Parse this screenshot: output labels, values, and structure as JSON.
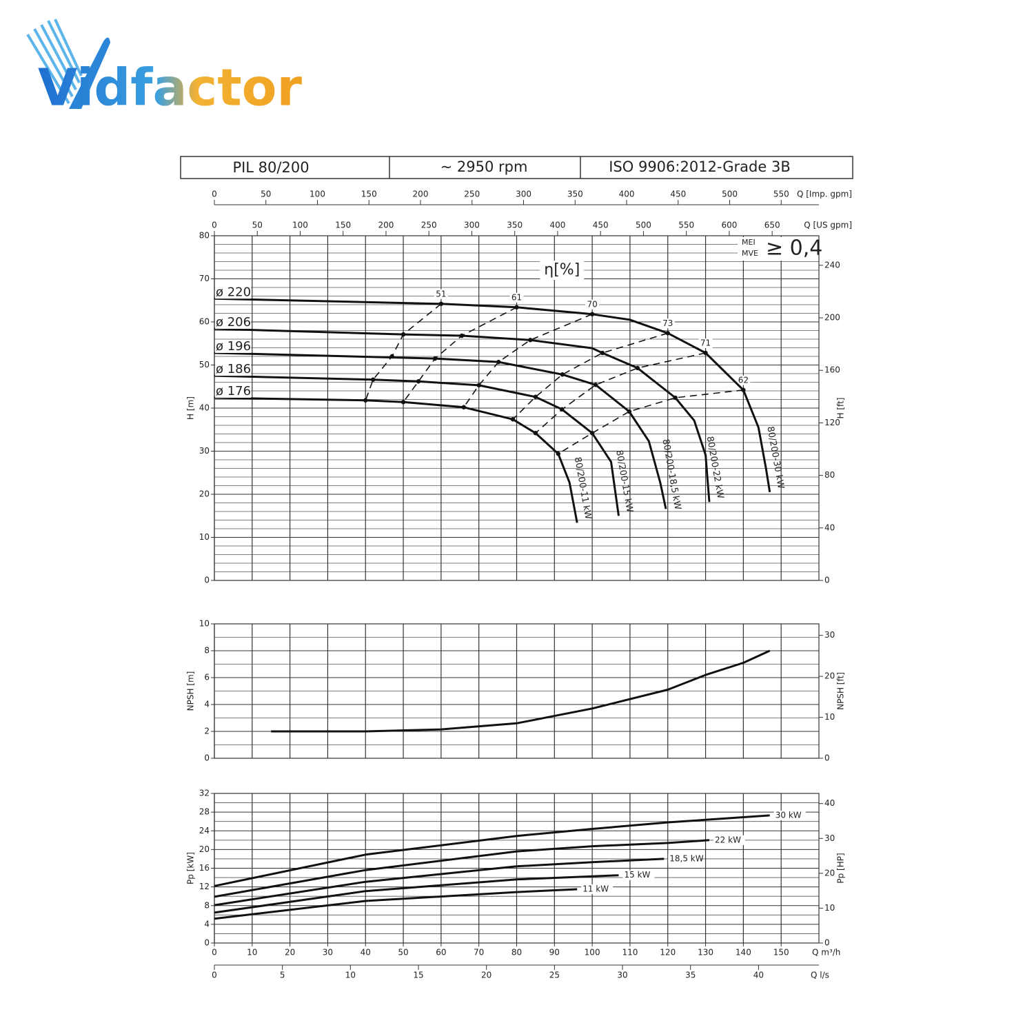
{
  "logo": "Vidfactor",
  "header": {
    "model": "PIL 80/200",
    "speed": "~ 2950 rpm",
    "standard": "ISO 9906:2012-Grade 3B"
  },
  "chart_data": [
    {
      "type": "line",
      "ylabel": "H [m]",
      "y2label": "H [ft]",
      "ylim": [
        0,
        80
      ],
      "yticks": [
        0,
        10,
        20,
        30,
        40,
        50,
        60,
        70,
        80
      ],
      "y2lim": [
        0,
        262.5
      ],
      "y2ticks": [
        0,
        40,
        80,
        120,
        160,
        200,
        240
      ],
      "grid": true,
      "grid_divisions": 5,
      "color": "#111111",
      "top_axes": [
        {
          "label": "Q [Imp. gpm]",
          "xlim": [
            0,
            586.6
          ],
          "xticks": [
            0,
            50,
            100,
            150,
            200,
            250,
            300,
            350,
            400,
            450,
            500,
            550
          ]
        },
        {
          "label": "Q [US gpm]",
          "xlim": [
            0,
            704.5
          ],
          "xticks": [
            0,
            50,
            100,
            150,
            200,
            250,
            300,
            350,
            400,
            450,
            500,
            550,
            600,
            650
          ]
        }
      ],
      "annotation": "η[%]",
      "mei": {
        "labels": [
          "MEI",
          "MVE"
        ],
        "text": "≥ 0,4"
      },
      "series": [
        {
          "name": "ø 220",
          "motor": "80/200-30 kW",
          "x": [
            0,
            60,
            80,
            100,
            110,
            120,
            130,
            140,
            144,
            146,
            147
          ],
          "values": [
            65.4,
            64.2,
            63.4,
            61.8,
            60.5,
            57.4,
            52.8,
            44.2,
            35.5,
            25.9,
            20.5
          ]
        },
        {
          "name": "ø 206",
          "motor": "80/200-22 kW",
          "x": [
            0,
            50,
            65.5,
            83.6,
            100,
            102.7,
            112,
            122,
            127,
            130,
            131
          ],
          "values": [
            58.4,
            57.1,
            56.8,
            55.8,
            53.9,
            52.8,
            49.3,
            42.4,
            37.1,
            29.1,
            18.2
          ]
        },
        {
          "name": "ø 196",
          "motor": "80/200-18,5 kW",
          "x": [
            0,
            58.4,
            75.2,
            92.1,
            100.9,
            109.8,
            115,
            118,
            119.5
          ],
          "values": [
            52.8,
            51.5,
            50.7,
            47.8,
            45.4,
            39.2,
            32.3,
            22.7,
            16.6
          ]
        },
        {
          "name": "ø 186",
          "motor": "80/200-15 kW",
          "x": [
            0,
            42,
            54,
            70,
            85,
            92,
            100,
            105,
            107
          ],
          "values": [
            47.5,
            46.6,
            46.2,
            45.3,
            42.6,
            39.7,
            34.2,
            27.5,
            15
          ]
        },
        {
          "name": "ø 176",
          "motor": "80/200-11 kW",
          "x": [
            0,
            40,
            50,
            66,
            79,
            85,
            91,
            94,
            96
          ],
          "values": [
            42.4,
            41.8,
            41.4,
            40.2,
            37.4,
            34.2,
            29.4,
            22.7,
            13.4
          ]
        }
      ],
      "efficiency_lines": [
        {
          "name": "51",
          "x": [
            60,
            50,
            47,
            42,
            40
          ],
          "values": [
            64.2,
            57.1,
            52.0,
            46.6,
            41.8
          ]
        },
        {
          "name": "61",
          "x": [
            80,
            65.5,
            58.4,
            54,
            50
          ],
          "values": [
            63.4,
            56.8,
            51.5,
            46.2,
            41.4
          ]
        },
        {
          "name": "70",
          "x": [
            100,
            83.6,
            75.2,
            70,
            66
          ],
          "values": [
            61.8,
            55.8,
            50.7,
            45.3,
            40.2
          ]
        },
        {
          "name": "73",
          "x": [
            120,
            102.7,
            92.1,
            85,
            79
          ],
          "values": [
            57.4,
            52.8,
            47.8,
            42.6,
            37.4
          ]
        },
        {
          "name": "71",
          "x": [
            130,
            112,
            100.9,
            92,
            85
          ],
          "values": [
            52.8,
            49.3,
            45.4,
            39.7,
            34.2
          ]
        },
        {
          "name": "62",
          "x": [
            140,
            122,
            109.8,
            100,
            91
          ],
          "values": [
            44.2,
            42.4,
            39.2,
            34.2,
            29.4
          ]
        }
      ]
    },
    {
      "type": "line",
      "ylabel": "NPSH [m]",
      "y2label": "NPSH [ft]",
      "ylim": [
        0,
        10
      ],
      "yticks": [
        0,
        2,
        4,
        6,
        8,
        10
      ],
      "y2lim": [
        0,
        32.81
      ],
      "y2ticks": [
        0,
        10,
        20,
        30
      ],
      "grid": true,
      "grid_divisions": 2,
      "color": "#111111",
      "series": [
        {
          "x": [
            15,
            40,
            60,
            80,
            100,
            120,
            130,
            140,
            147
          ],
          "values": [
            2.0,
            2.0,
            2.15,
            2.6,
            3.7,
            5.1,
            6.2,
            7.1,
            8.0
          ]
        }
      ]
    },
    {
      "type": "line",
      "ylabel": "Pp [kW]",
      "y2label": "Pp [HP]",
      "xlabel": "Q m³/h",
      "xlim": [
        0,
        160
      ],
      "xticks": [
        0,
        10,
        20,
        30,
        40,
        50,
        60,
        70,
        80,
        90,
        100,
        110,
        120,
        130,
        140,
        150
      ],
      "x2label": "Q l/s",
      "x2lim": [
        0,
        44.44
      ],
      "x2ticks": [
        0,
        5,
        10,
        15,
        20,
        25,
        30,
        35,
        40
      ],
      "ylim": [
        0,
        32
      ],
      "yticks": [
        0,
        4,
        8,
        12,
        16,
        20,
        24,
        28,
        32
      ],
      "y2lim": [
        0,
        42.91
      ],
      "y2ticks": [
        0,
        10,
        20,
        30,
        40
      ],
      "grid": true,
      "grid_divisions": 2,
      "color": "#111111",
      "series": [
        {
          "name": "30 kW",
          "x": [
            0,
            40,
            80,
            100,
            120,
            147
          ],
          "values": [
            12.2,
            18.9,
            22.9,
            24.4,
            25.8,
            27.3
          ]
        },
        {
          "name": "22 kW",
          "x": [
            0,
            40,
            80,
            100,
            120,
            131
          ],
          "values": [
            9.9,
            15.6,
            19.6,
            20.7,
            21.4,
            22.0
          ]
        },
        {
          "name": "18,5 kW",
          "x": [
            0,
            40,
            80,
            100,
            119
          ],
          "values": [
            8.1,
            13.1,
            16.4,
            17.3,
            18.0
          ]
        },
        {
          "name": "15 kW",
          "x": [
            0,
            40,
            80,
            107
          ],
          "values": [
            6.5,
            11.1,
            13.6,
            14.5
          ]
        },
        {
          "name": "11 kW",
          "x": [
            0,
            40,
            80,
            96
          ],
          "values": [
            5.2,
            9.0,
            10.9,
            11.5
          ]
        }
      ]
    }
  ]
}
